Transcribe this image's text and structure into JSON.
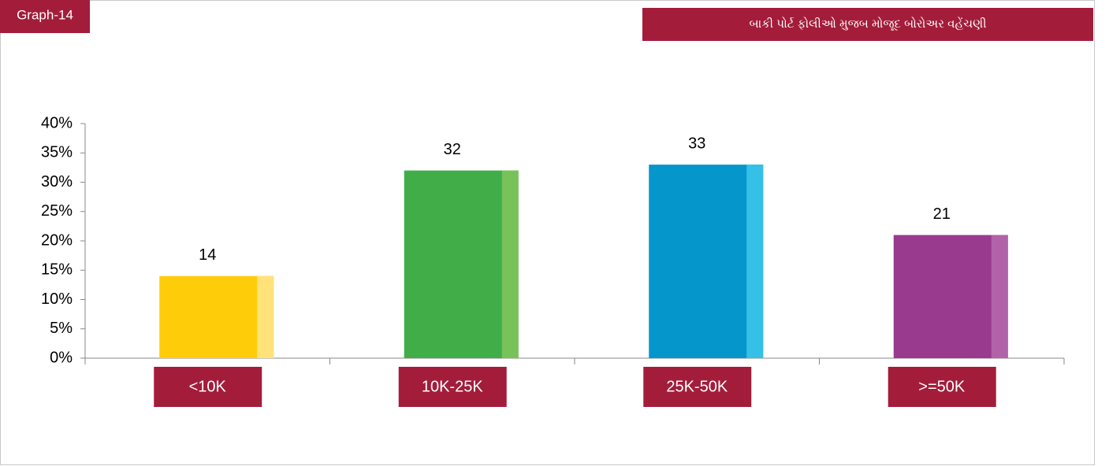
{
  "chart_data": {
    "type": "bar",
    "badge": "Graph-14",
    "title": "બાકી પોર્ટ ફોલીઓ મુજબ મોજૂદ બોરોઅર વહેંચણી",
    "categories": [
      "<10K",
      "10K-25K",
      "25K-50K",
      ">=50K"
    ],
    "values": [
      14,
      32,
      33,
      21
    ],
    "colors": [
      "#ffcc0a",
      "#41ad49",
      "#0596cb",
      "#993a8f"
    ],
    "highlight_colors": [
      "#ffe27a",
      "#78c25a",
      "#35c0e8",
      "#b262a9"
    ],
    "label_box_color": "#a31d3a",
    "ylim": [
      0,
      40
    ],
    "yticks": [
      {
        "value": 0,
        "label": "0%"
      },
      {
        "value": 5,
        "label": "5%"
      },
      {
        "value": 10,
        "label": "10%"
      },
      {
        "value": 15,
        "label": "15%"
      },
      {
        "value": 20,
        "label": "20%"
      },
      {
        "value": 25,
        "label": "25%"
      },
      {
        "value": 30,
        "label": "30%"
      },
      {
        "value": 35,
        "label": "35%"
      },
      {
        "value": 40,
        "label": "40%"
      }
    ],
    "grid": false
  }
}
